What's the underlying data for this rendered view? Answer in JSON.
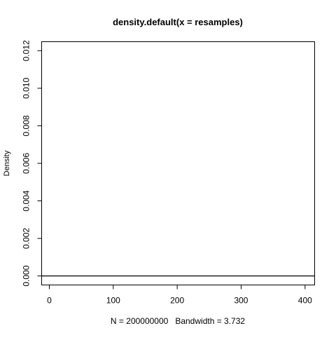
{
  "chart_data": {
    "type": "line",
    "title": "density.default(x = resamples)",
    "xlabel": "N = 200000000   Bandwidth = 3.732",
    "ylabel": "Density",
    "xlim": [
      -12,
      415
    ],
    "ylim": [
      -0.00048,
      0.01248
    ],
    "x_ticks": [
      0,
      100,
      200,
      300,
      400
    ],
    "x_tick_labels": [
      "0",
      "100",
      "200",
      "300",
      "400"
    ],
    "y_ticks": [
      0.0,
      0.002,
      0.004,
      0.006,
      0.008,
      0.01,
      0.012
    ],
    "y_tick_labels": [
      "0.000",
      "0.002",
      "0.004",
      "0.006",
      "0.008",
      "0.010",
      "0.012"
    ],
    "grid": false,
    "series": [
      {
        "x": [
          -12,
          415
        ],
        "y": [
          0,
          0
        ]
      }
    ]
  }
}
